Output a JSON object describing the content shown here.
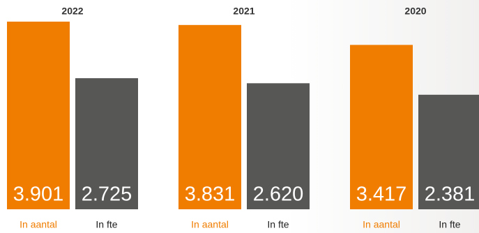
{
  "chart_data": {
    "type": "bar",
    "categories": [
      "2022",
      "2021",
      "2020"
    ],
    "series": [
      {
        "name": "In aantal",
        "color": "#f07d00",
        "values": [
          3901,
          3831,
          3417
        ],
        "value_labels": [
          "3.901",
          "3.831",
          "3.417"
        ]
      },
      {
        "name": "In fte",
        "color": "#575756",
        "values": [
          2725,
          2620,
          2381
        ],
        "value_labels": [
          "2.725",
          "2.620",
          "2.381"
        ]
      }
    ]
  }
}
